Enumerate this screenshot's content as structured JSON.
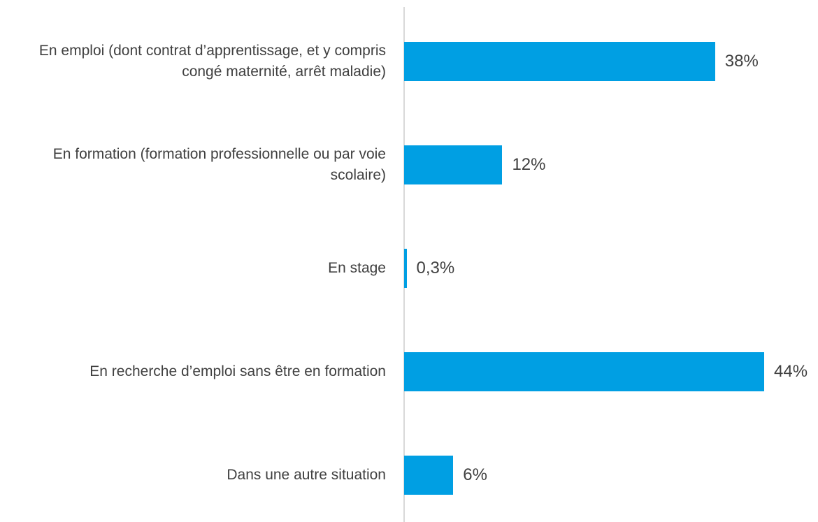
{
  "chart_data": {
    "type": "bar",
    "orientation": "horizontal",
    "categories": [
      "En emploi (dont contrat d’apprentissage, et y compris congé maternité, arrêt maladie)",
      "En formation (formation professionnelle ou par voie scolaire)",
      "En stage",
      "En recherche d’emploi sans être en formation",
      "Dans une autre situation"
    ],
    "values": [
      38,
      12,
      0.3,
      44,
      6
    ],
    "value_labels": [
      "38%",
      "12%",
      "0,3%",
      "44%",
      "6%"
    ],
    "color": "#009fe3"
  }
}
